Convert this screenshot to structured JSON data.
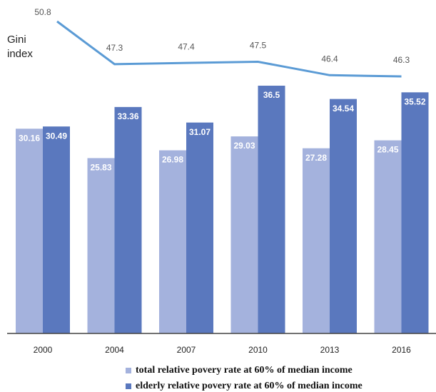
{
  "chart_data": {
    "type": "bar",
    "categories": [
      "2000",
      "2004",
      "2007",
      "2010",
      "2013",
      "2016"
    ],
    "series": [
      {
        "name": "total relative povery rate at 60% of median income",
        "color": "#a4b2dd",
        "values": [
          30.16,
          25.83,
          26.98,
          29.03,
          27.28,
          28.45
        ]
      },
      {
        "name": "elderly relative povery rate at 60% of median income",
        "color": "#5a78be",
        "values": [
          30.49,
          33.36,
          31.07,
          36.5,
          34.54,
          35.52
        ]
      }
    ],
    "line": {
      "name": "Gini index",
      "color": "#5b9bd5",
      "values": [
        50.8,
        47.3,
        47.4,
        47.5,
        46.4,
        46.3
      ]
    }
  }
}
